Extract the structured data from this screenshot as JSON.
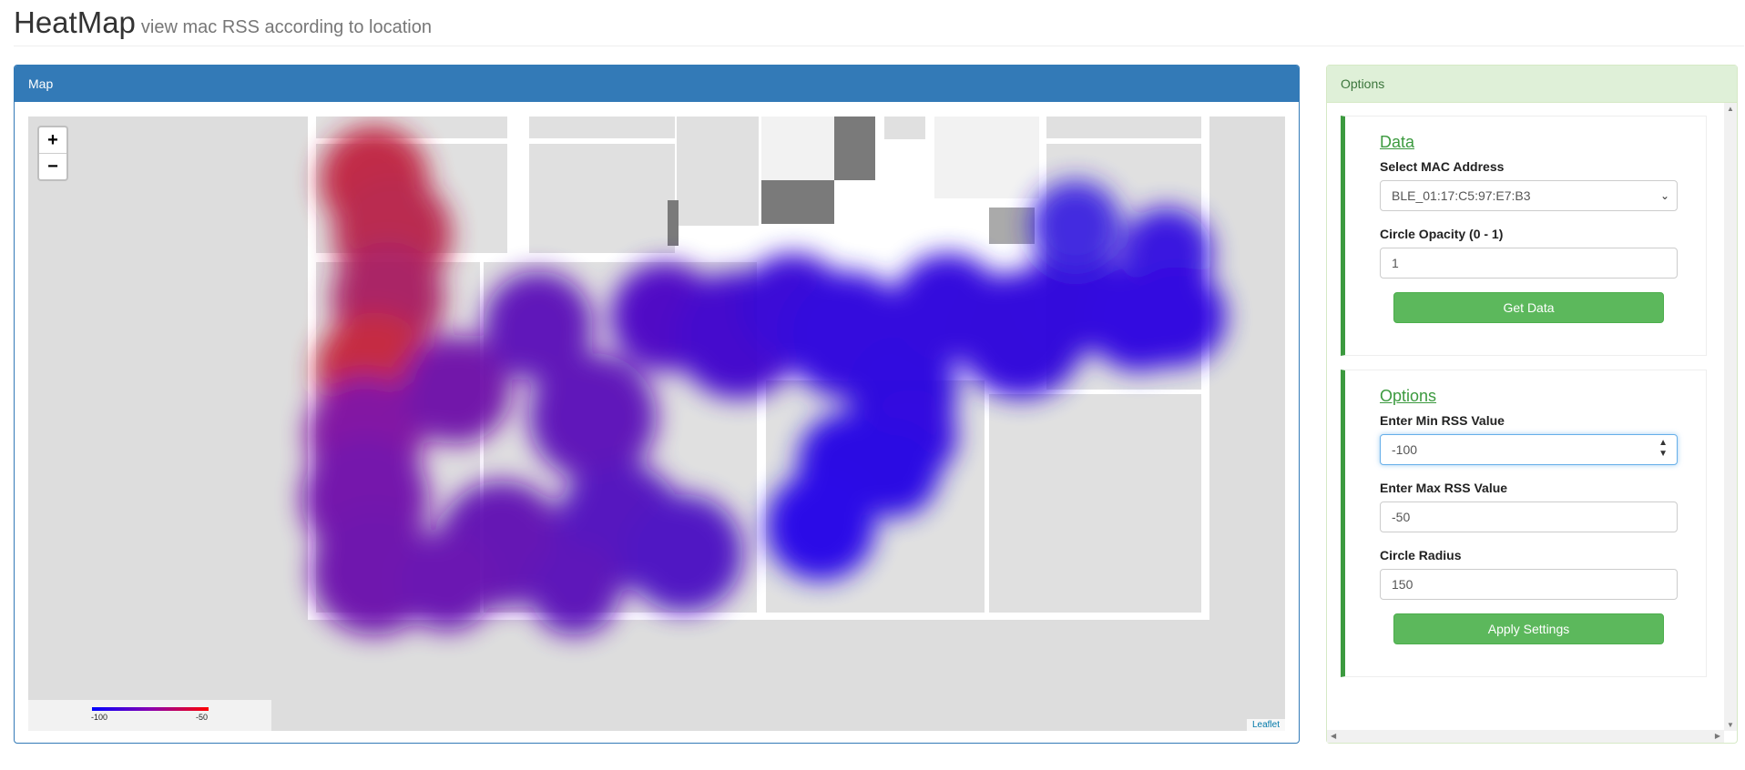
{
  "header": {
    "title": "HeatMap",
    "subtitle": "view mac RSS according to location"
  },
  "map_panel": {
    "heading": "Map",
    "zoom_in": "+",
    "zoom_out": "−",
    "legend": {
      "min_label": "-100",
      "max_label": "-50",
      "min_color": "#0000ff",
      "max_color": "#ff0000"
    },
    "attribution": "Leaflet"
  },
  "options_panel": {
    "heading": "Options",
    "data_section": {
      "title": "Data",
      "mac_label": "Select MAC Address",
      "mac_value": "BLE_01:17:C5:97:E7:B3",
      "opacity_label": "Circle Opacity (0 - 1)",
      "opacity_value": "1",
      "get_data_button": "Get Data"
    },
    "options_section": {
      "title": "Options",
      "min_rss_label": "Enter Min RSS Value",
      "min_rss_value": "-100",
      "max_rss_label": "Enter Max RSS Value",
      "max_rss_value": "-50",
      "radius_label": "Circle Radius",
      "radius_value": "150",
      "apply_button": "Apply Settings"
    }
  },
  "colors": {
    "primary": "#337ab7",
    "success": "#5cb85c",
    "success_panel": "#dff0d8",
    "accent_green": "#3c9a3f"
  }
}
